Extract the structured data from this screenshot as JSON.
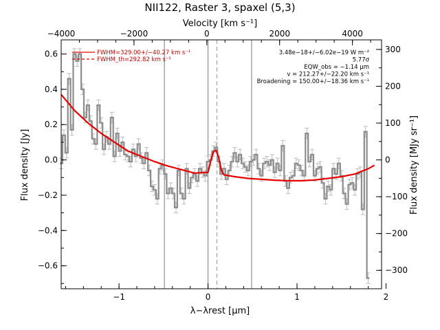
{
  "chart_data": {
    "type": "line",
    "title": "NII122, Raster 3, spaxel (5,3)",
    "xlabel": "λ−λrest [μm]",
    "ylabel": "Flux density [Jy]",
    "top_xlabel": "Velocity [km s⁻¹]",
    "right_ylabel": "Flux density [MJy sr⁻¹]",
    "xlim": [
      -1.65,
      1.95
    ],
    "ylim": [
      -0.73,
      0.68
    ],
    "top_xlim": [
      -4000,
      4800
    ],
    "right_ylim": [
      -350,
      326
    ],
    "x_ticks": [
      -1,
      0,
      1,
      2
    ],
    "x_tick_labels": [
      "−1",
      "0",
      "1",
      "2"
    ],
    "y_ticks": [
      -0.6,
      -0.4,
      -0.2,
      0.0,
      0.2,
      0.4,
      0.6
    ],
    "y_tick_labels": [
      "−0.6",
      "−0.4",
      "−0.2",
      "0.0",
      "0.2",
      "0.4",
      "0.6"
    ],
    "top_ticks": [
      -4000,
      -2000,
      0,
      2000,
      4000
    ],
    "top_tick_labels": [
      "−4000",
      "−2000",
      "0",
      "2000",
      "4000"
    ],
    "right_ticks": [
      -300,
      -200,
      -100,
      0,
      100,
      200,
      300
    ],
    "right_tick_labels": [
      "−300",
      "−200",
      "−100",
      "0",
      "100",
      "200",
      "300"
    ],
    "vertical_lines": [
      -0.49,
      0.0,
      0.49
    ],
    "dashed_line": 0.1,
    "annotations": [
      "3.48e−18+/−6.02e−19 W m⁻²",
      "5.77σ",
      "EQW_obs = −1.14 μm",
      "v = 212.27+/−22.20 km s⁻¹",
      "Broadening = 150.00+/−18.36 km s⁻¹"
    ],
    "legend": [
      "FWHM=329.00+/−40.27 km s⁻¹",
      "FWHM_th=292.82 km s⁻¹"
    ],
    "legend_position": "top-left",
    "grid": false,
    "colors": {
      "spectrum": "#8c8c8c",
      "errorbar": "#bbbbbb",
      "fit": "#e60000"
    },
    "series": [
      {
        "name": "FWHM=329.00+/−40.27 km s⁻¹",
        "x": [
          -1.65,
          -1.62,
          -1.59,
          -1.56,
          -1.53,
          -1.5,
          -1.47,
          -1.44,
          -1.41,
          -1.38,
          -1.35,
          -1.32,
          -1.29,
          -1.26,
          -1.23,
          -1.2,
          -1.17,
          -1.14,
          -1.11,
          -1.08,
          -1.05,
          -1.02,
          -0.99,
          -0.96,
          -0.93,
          -0.9,
          -0.87,
          -0.84,
          -0.81,
          -0.78,
          -0.75,
          -0.72,
          -0.69,
          -0.66,
          -0.63,
          -0.6,
          -0.57,
          -0.54,
          -0.51,
          -0.48,
          -0.45,
          -0.42,
          -0.39,
          -0.36,
          -0.33,
          -0.3,
          -0.27,
          -0.24,
          -0.21,
          -0.18,
          -0.15,
          -0.12,
          -0.09,
          -0.06,
          -0.03,
          0.0,
          0.03,
          0.06,
          0.09,
          0.12,
          0.15,
          0.18,
          0.21,
          0.24,
          0.27,
          0.3,
          0.33,
          0.36,
          0.39,
          0.42,
          0.45,
          0.48,
          0.51,
          0.54,
          0.57,
          0.6,
          0.63,
          0.66,
          0.69,
          0.72,
          0.75,
          0.78,
          0.81,
          0.84,
          0.87,
          0.9,
          0.93,
          0.96,
          0.99,
          1.02,
          1.05,
          1.08,
          1.11,
          1.14,
          1.17,
          1.2,
          1.23,
          1.26,
          1.29,
          1.32,
          1.35,
          1.38,
          1.41,
          1.44,
          1.47,
          1.5,
          1.53,
          1.56,
          1.59,
          1.62,
          1.65,
          1.68,
          1.71,
          1.74,
          1.77,
          1.8
        ],
        "values": [
          -0.02,
          0.14,
          0.04,
          0.46,
          0.17,
          0.6,
          0.56,
          0.6,
          0.4,
          0.24,
          0.31,
          0.22,
          0.12,
          0.09,
          0.31,
          0.21,
          0.06,
          0.13,
          0.09,
          0.24,
          0.02,
          0.15,
          0.05,
          0.1,
          0.03,
          0.02,
          -0.01,
          0.06,
          0.02,
          0.09,
          0.01,
          -0.02,
          0.04,
          -0.06,
          -0.15,
          -0.17,
          -0.22,
          -0.05,
          -0.03,
          -0.08,
          -0.19,
          -0.16,
          -0.19,
          -0.27,
          -0.06,
          -0.19,
          -0.22,
          -0.05,
          -0.16,
          -0.1,
          -0.08,
          -0.12,
          -0.05,
          -0.07,
          -0.09,
          -0.01,
          0.0,
          0.05,
          0.07,
          -0.01,
          -0.08,
          -0.05,
          -0.11,
          -0.06,
          -0.01,
          0.04,
          -0.01,
          0.03,
          -0.02,
          -0.04,
          -0.06,
          -0.01,
          0.0,
          0.03,
          -0.05,
          -0.09,
          -0.02,
          -0.01,
          -0.03,
          0.0,
          -0.07,
          -0.02,
          -0.06,
          0.08,
          -0.12,
          -0.16,
          -0.1,
          -0.09,
          -0.02,
          -0.03,
          -0.06,
          -0.09,
          0.15,
          -0.01,
          0.03,
          -0.09,
          -0.05,
          -0.04,
          -0.13,
          -0.22,
          -0.15,
          -0.17,
          -0.05,
          -0.08,
          -0.02,
          -0.09,
          -0.19,
          -0.25,
          -0.14,
          -0.13,
          -0.17,
          -0.08,
          -0.07,
          -0.28,
          0.16,
          -0.67
        ]
      },
      {
        "name": "FWHM_th=292.82 km s⁻¹",
        "x": [
          -1.65,
          -1.5,
          -1.35,
          -1.2,
          -1.05,
          -0.9,
          -0.75,
          -0.6,
          -0.45,
          -0.3,
          -0.15,
          0.0,
          0.03,
          0.06,
          0.09,
          0.12,
          0.15,
          0.18,
          0.3,
          0.45,
          0.6,
          0.75,
          0.9,
          1.05,
          1.2,
          1.35,
          1.5,
          1.65,
          1.8,
          1.87
        ],
        "values": [
          0.37,
          0.28,
          0.21,
          0.15,
          0.1,
          0.05,
          0.02,
          -0.01,
          -0.035,
          -0.055,
          -0.075,
          -0.07,
          -0.005,
          0.045,
          0.055,
          0.015,
          -0.06,
          -0.085,
          -0.095,
          -0.105,
          -0.11,
          -0.115,
          -0.118,
          -0.118,
          -0.114,
          -0.105,
          -0.095,
          -0.08,
          -0.05,
          -0.03
        ]
      }
    ]
  }
}
